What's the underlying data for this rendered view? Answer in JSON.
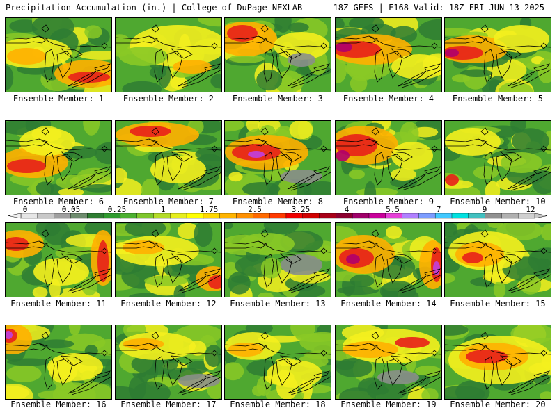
{
  "header": {
    "title": "Precipitation Accumulation (in.) | College of DuPage NEXLAB",
    "run_info": "18Z GEFS | F168 Valid: 18Z FRI JUN 13 2025"
  },
  "members": [
    "Ensemble Member: 1",
    "Ensemble Member: 2",
    "Ensemble Member: 3",
    "Ensemble Member: 4",
    "Ensemble Member: 5",
    "Ensemble Member: 6",
    "Ensemble Member: 7",
    "Ensemble Member: 8",
    "Ensemble Member: 9",
    "Ensemble Member: 10",
    "Ensemble Member: 11",
    "Ensemble Member: 12",
    "Ensemble Member: 13",
    "Ensemble Member: 14",
    "Ensemble Member: 15",
    "Ensemble Member: 16",
    "Ensemble Member: 17",
    "Ensemble Member: 18",
    "Ensemble Member: 19",
    "Ensemble Member: 20"
  ],
  "colorbar": {
    "labels": [
      "0",
      "0.05",
      "0.25",
      "1",
      "1.75",
      "2.5",
      "3.25",
      "4",
      "5.5",
      "7",
      "9",
      "12"
    ],
    "colors": [
      "#e6e6e6",
      "#c8c8c8",
      "#a0a0a0",
      "#6e8c6e",
      "#2e7d32",
      "#2f9b2f",
      "#4cb030",
      "#7ec62c",
      "#b4dc28",
      "#e6ee1e",
      "#ffff00",
      "#ffd800",
      "#ffb400",
      "#ff9000",
      "#ff6a00",
      "#ff3a00",
      "#f00000",
      "#d00000",
      "#a80018",
      "#8c0030",
      "#a0006a",
      "#c8009a",
      "#e640d8",
      "#b080ff",
      "#7c9cff",
      "#40c8ff",
      "#00e0e0",
      "#40c0c0",
      "#909090",
      "#b0b0b0",
      "#d0d0d0"
    ]
  },
  "palette": {
    "dark_green": "#2e7d32",
    "green": "#4fa830",
    "light_green": "#8ac926",
    "yellow": "#f4f01e",
    "orange": "#ffb000",
    "red": "#e8201a",
    "magenta": "#b0006a",
    "purple": "#c040e0",
    "gray": "#8a8f8a"
  }
}
